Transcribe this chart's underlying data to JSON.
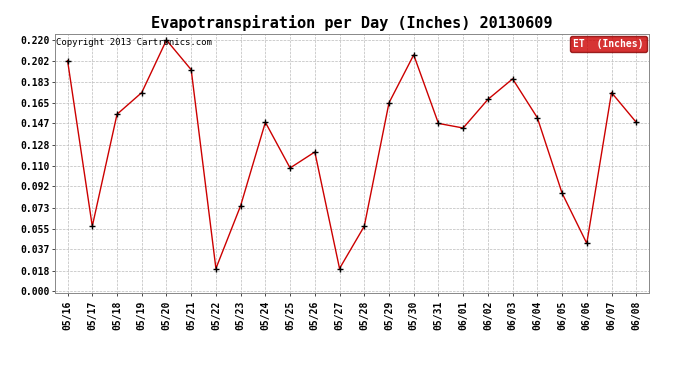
{
  "title": "Evapotranspiration per Day (Inches) 20130609",
  "copyright": "Copyright 2013 Cartronics.com",
  "legend_label": "ET  (Inches)",
  "legend_bg": "#cc0000",
  "legend_text_color": "#ffffff",
  "dates": [
    "05/16",
    "05/17",
    "05/18",
    "05/19",
    "05/20",
    "05/21",
    "05/22",
    "05/23",
    "05/24",
    "05/25",
    "05/26",
    "05/27",
    "05/28",
    "05/29",
    "05/30",
    "05/31",
    "06/01",
    "06/02",
    "06/03",
    "06/04",
    "06/05",
    "06/06",
    "06/07",
    "06/08"
  ],
  "values": [
    0.202,
    0.057,
    0.155,
    0.174,
    0.22,
    0.194,
    0.02,
    0.075,
    0.148,
    0.108,
    0.122,
    0.02,
    0.057,
    0.165,
    0.207,
    0.147,
    0.143,
    0.168,
    0.186,
    0.152,
    0.086,
    0.042,
    0.174,
    0.148
  ],
  "line_color": "#cc0000",
  "marker_color": "#000000",
  "bg_color": "#ffffff",
  "grid_color": "#bbbbbb",
  "ylim": [
    -0.001,
    0.2255
  ],
  "yticks": [
    0.0,
    0.018,
    0.037,
    0.055,
    0.073,
    0.092,
    0.11,
    0.128,
    0.147,
    0.165,
    0.183,
    0.202,
    0.22
  ],
  "title_fontsize": 11,
  "tick_fontsize": 7,
  "copyright_fontsize": 6.5
}
